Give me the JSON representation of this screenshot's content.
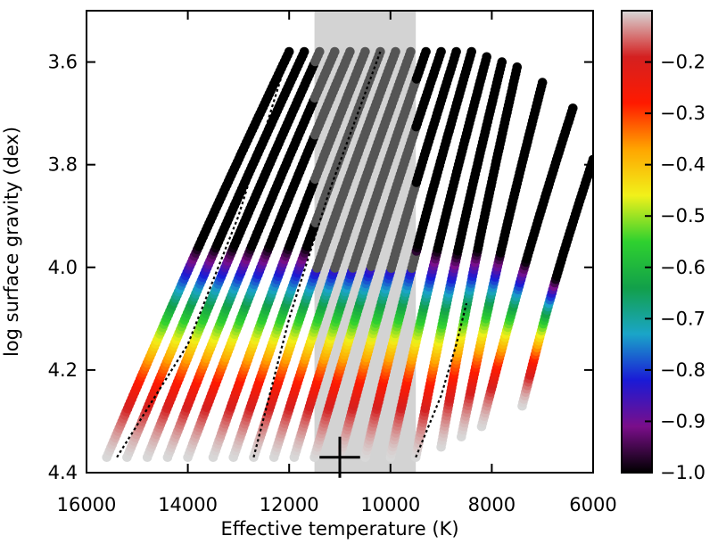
{
  "chart_data": {
    "type": "scatter",
    "title": "",
    "xlabel": "Effective temperature (K)",
    "ylabel": "log surface gravity (dex)",
    "xlim": [
      16000,
      6000
    ],
    "ylim": [
      4.4,
      3.5
    ],
    "x_inverted": true,
    "y_inverted": true,
    "grid": false,
    "x_ticks": [
      16000,
      14000,
      12000,
      10000,
      8000,
      6000
    ],
    "x_tick_labels": [
      "16000",
      "14000",
      "12000",
      "10000",
      "8000",
      "6000"
    ],
    "y_ticks": [
      3.6,
      3.8,
      4.0,
      4.2,
      4.4
    ],
    "y_tick_labels": [
      "3.6",
      "3.8",
      "4.0",
      "4.2",
      "4.4"
    ],
    "colorbar": {
      "range": [
        -1.0,
        -0.1
      ],
      "ticks": [
        -0.2,
        -0.3,
        -0.4,
        -0.5,
        -0.6,
        -0.7,
        -0.8,
        -0.9,
        -1.0
      ],
      "tick_labels": [
        "−0.2",
        "−0.3",
        "−0.4",
        "−0.5",
        "−0.6",
        "−0.7",
        "−0.8",
        "−0.9",
        "−1.0"
      ],
      "colormap": [
        "#000000",
        "#7a0e8a",
        "#1a1ad6",
        "#1aa5c8",
        "#12a04a",
        "#2fd12f",
        "#f1f11a",
        "#ffa500",
        "#ff1a00",
        "#d42020",
        "#d8d8d8"
      ]
    },
    "shaded_band": {
      "x_range": [
        11500,
        9500
      ],
      "color": "#d3d3d3"
    },
    "tracks": {
      "count": 19,
      "zams_teff": [
        15600,
        15200,
        14800,
        14400,
        14000,
        13500,
        13100,
        12700,
        12300,
        11900,
        11500,
        11000,
        10500,
        10000,
        9500,
        9000,
        8600,
        8200,
        7400
      ],
      "zams_logg": [
        4.37,
        4.37,
        4.37,
        4.37,
        4.37,
        4.37,
        4.37,
        4.37,
        4.37,
        4.37,
        4.37,
        4.37,
        4.37,
        4.37,
        4.37,
        4.35,
        4.33,
        4.31,
        4.27
      ],
      "top_teff": [
        12000,
        11700,
        11400,
        11100,
        10800,
        10500,
        10200,
        9900,
        9600,
        9300,
        9000,
        8700,
        8400,
        8100,
        7800,
        7500,
        7000,
        6400,
        6000
      ],
      "top_logg": [
        3.58,
        3.58,
        3.58,
        3.58,
        3.58,
        3.58,
        3.58,
        3.58,
        3.58,
        3.58,
        3.58,
        3.58,
        3.58,
        3.59,
        3.6,
        3.61,
        3.64,
        3.69,
        3.79
      ],
      "metric_zams": -0.1,
      "metric_top": -1.0
    },
    "dotted_lines": [
      {
        "x": [
          15400,
          14000,
          13000,
          12000
        ],
        "y": [
          4.37,
          4.15,
          3.9,
          3.58
        ],
        "color": "#000000"
      },
      {
        "x": [
          12700,
          12000,
          11200,
          10200
        ],
        "y": [
          4.37,
          4.1,
          3.85,
          3.58
        ],
        "color": "#000000"
      },
      {
        "x": [
          9500,
          9000,
          8700,
          8500
        ],
        "y": [
          4.37,
          4.25,
          4.15,
          4.07
        ],
        "color": "#000000"
      }
    ],
    "error_cross": {
      "teff": 11000,
      "logg": 4.37,
      "teff_err": 400,
      "logg_err": 0.04
    }
  }
}
